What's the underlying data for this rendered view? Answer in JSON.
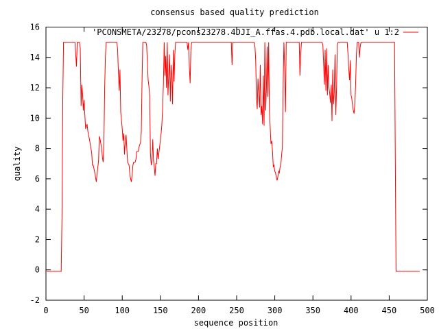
{
  "chart_data": {
    "type": "line",
    "title": "consensus based quality prediction",
    "xlabel": "sequence position",
    "ylabel": "quality",
    "xlim": [
      0,
      500
    ],
    "ylim": [
      -2,
      16
    ],
    "xticks": [
      0,
      50,
      100,
      150,
      200,
      250,
      300,
      350,
      400,
      450,
      500
    ],
    "yticks": [
      -2,
      0,
      2,
      4,
      6,
      8,
      10,
      12,
      14,
      16
    ],
    "legend_position": "top-right",
    "grid": false,
    "series": [
      {
        "name": "'PCONSMETA/23278/pcons23278.4DJI_A.ffas.4.pdb.local.dat' u 1:2",
        "color": "#ff0000",
        "points": [
          [
            1,
            -0.1
          ],
          [
            20,
            -0.1
          ],
          [
            21,
            3.6
          ],
          [
            22,
            11.2
          ],
          [
            23,
            15
          ],
          [
            38,
            15
          ],
          [
            39,
            14.2
          ],
          [
            40,
            13.4
          ],
          [
            41,
            15
          ],
          [
            44,
            15
          ],
          [
            45,
            14.6
          ],
          [
            46,
            10.8
          ],
          [
            47,
            12.2
          ],
          [
            48,
            11.6
          ],
          [
            49,
            10.5
          ],
          [
            50,
            11.2
          ],
          [
            51,
            10.2
          ],
          [
            52,
            9.3
          ],
          [
            54,
            9.6
          ],
          [
            55,
            9.1
          ],
          [
            57,
            8.6
          ],
          [
            60,
            7.7
          ],
          [
            61,
            6.9
          ],
          [
            62,
            6.9
          ],
          [
            64,
            6.4
          ],
          [
            65,
            6.1
          ],
          [
            66,
            5.8
          ],
          [
            67,
            6.3
          ],
          [
            69,
            7.2
          ],
          [
            70,
            8.8
          ],
          [
            71,
            8.6
          ],
          [
            73,
            8
          ],
          [
            74,
            7.4
          ],
          [
            75,
            7.1
          ],
          [
            76,
            8.5
          ],
          [
            77,
            12
          ],
          [
            78,
            14.1
          ],
          [
            79,
            15
          ],
          [
            93,
            15
          ],
          [
            94,
            14.5
          ],
          [
            95,
            13
          ],
          [
            96,
            11.8
          ],
          [
            97,
            13.2
          ],
          [
            98,
            10.4
          ],
          [
            100,
            9.3
          ],
          [
            101,
            8.5
          ],
          [
            102,
            9
          ],
          [
            103,
            7.6
          ],
          [
            104,
            8.4
          ],
          [
            105,
            8.9
          ],
          [
            107,
            7.1
          ],
          [
            108,
            7
          ],
          [
            109,
            6.9
          ],
          [
            110,
            6.3
          ],
          [
            111,
            6
          ],
          [
            112,
            5.8
          ],
          [
            113,
            6.3
          ],
          [
            114,
            6.9
          ],
          [
            115,
            7.1
          ],
          [
            116,
            7.1
          ],
          [
            117,
            7.1
          ],
          [
            118,
            7.3
          ],
          [
            119,
            7.8
          ],
          [
            121,
            7.8
          ],
          [
            122,
            8.1
          ],
          [
            124,
            8.4
          ],
          [
            125,
            9.1
          ],
          [
            126,
            12.5
          ],
          [
            127,
            15
          ],
          [
            131,
            15
          ],
          [
            132,
            14.8
          ],
          [
            133,
            13.6
          ],
          [
            134,
            12.5
          ],
          [
            135,
            12.1
          ],
          [
            136,
            11.5
          ],
          [
            137,
            7.7
          ],
          [
            138,
            6.9
          ],
          [
            139,
            7.2
          ],
          [
            140,
            8.6
          ],
          [
            141,
            7.2
          ],
          [
            142,
            6.8
          ],
          [
            143,
            6.2
          ],
          [
            144,
            7
          ],
          [
            145,
            7
          ],
          [
            146,
            8
          ],
          [
            147,
            7.3
          ],
          [
            149,
            8.1
          ],
          [
            151,
            9
          ],
          [
            152,
            9.6
          ],
          [
            153,
            10.7
          ],
          [
            154,
            12.2
          ],
          [
            155,
            15
          ],
          [
            156,
            12.8
          ],
          [
            157,
            14.1
          ],
          [
            158,
            12
          ],
          [
            159,
            15
          ],
          [
            160,
            11.5
          ],
          [
            162,
            14.2
          ],
          [
            163,
            11.1
          ],
          [
            164,
            13.5
          ],
          [
            165,
            12.8
          ],
          [
            166,
            10.9
          ],
          [
            167,
            14.5
          ],
          [
            168,
            12.4
          ],
          [
            169,
            14.2
          ],
          [
            170,
            15
          ],
          [
            185,
            15
          ],
          [
            186,
            14.5
          ],
          [
            187,
            15
          ],
          [
            188,
            13.3
          ],
          [
            189,
            12.3
          ],
          [
            190,
            14.5
          ],
          [
            191,
            15
          ],
          [
            243,
            15
          ],
          [
            244,
            13.5
          ],
          [
            245,
            15
          ],
          [
            273,
            15
          ],
          [
            274,
            14.7
          ],
          [
            275,
            13.8
          ],
          [
            276,
            11.3
          ],
          [
            277,
            10.6
          ],
          [
            278,
            12.6
          ],
          [
            279,
            11.5
          ],
          [
            280,
            10.7
          ],
          [
            281,
            13.5
          ],
          [
            282,
            10.2
          ],
          [
            283,
            10.8
          ],
          [
            284,
            9.6
          ],
          [
            285,
            12.8
          ],
          [
            286,
            9.5
          ],
          [
            287,
            15
          ],
          [
            288,
            10.5
          ],
          [
            289,
            12
          ],
          [
            290,
            14.7
          ],
          [
            291,
            11.4
          ],
          [
            292,
            15
          ],
          [
            293,
            10.4
          ],
          [
            294,
            9.4
          ],
          [
            295,
            8.3
          ],
          [
            296,
            8.5
          ],
          [
            297,
            7.8
          ],
          [
            298,
            6.8
          ],
          [
            299,
            6.9
          ],
          [
            300,
            6.5
          ],
          [
            301,
            6.4
          ],
          [
            302,
            6.1
          ],
          [
            303,
            5.9
          ],
          [
            304,
            6.1
          ],
          [
            305,
            6.5
          ],
          [
            306,
            6.4
          ],
          [
            307,
            6.8
          ],
          [
            308,
            7
          ],
          [
            309,
            7.6
          ],
          [
            310,
            8.1
          ],
          [
            311,
            12.3
          ],
          [
            312,
            15
          ],
          [
            313,
            13.2
          ],
          [
            314,
            10.4
          ],
          [
            315,
            15
          ],
          [
            332,
            15
          ],
          [
            333,
            12.8
          ],
          [
            334,
            14.2
          ],
          [
            335,
            15
          ],
          [
            362,
            15
          ],
          [
            363,
            14.8
          ],
          [
            364,
            13.6
          ],
          [
            365,
            12.2
          ],
          [
            366,
            14.5
          ],
          [
            367,
            11.8
          ],
          [
            368,
            14.6
          ],
          [
            369,
            11.5
          ],
          [
            370,
            13.5
          ],
          [
            371,
            12
          ],
          [
            372,
            11.6
          ],
          [
            373,
            11
          ],
          [
            374,
            12.2
          ],
          [
            375,
            9.8
          ],
          [
            376,
            13.2
          ],
          [
            377,
            10.9
          ],
          [
            378,
            11.7
          ],
          [
            379,
            14.2
          ],
          [
            380,
            10.2
          ],
          [
            381,
            12
          ],
          [
            382,
            14.8
          ],
          [
            383,
            15
          ],
          [
            395,
            15
          ],
          [
            396,
            14.2
          ],
          [
            397,
            13.2
          ],
          [
            398,
            12.5
          ],
          [
            399,
            13.8
          ],
          [
            400,
            11.5
          ],
          [
            401,
            11.3
          ],
          [
            402,
            10.8
          ],
          [
            403,
            10.5
          ],
          [
            404,
            10.3
          ],
          [
            405,
            11
          ],
          [
            406,
            12.3
          ],
          [
            407,
            14.2
          ],
          [
            408,
            15
          ],
          [
            410,
            15
          ],
          [
            411,
            14
          ],
          [
            412,
            14.7
          ],
          [
            413,
            15
          ],
          [
            457,
            15
          ],
          [
            458,
            7.3
          ],
          [
            459,
            -0.1
          ],
          [
            490,
            -0.1
          ]
        ]
      }
    ]
  }
}
